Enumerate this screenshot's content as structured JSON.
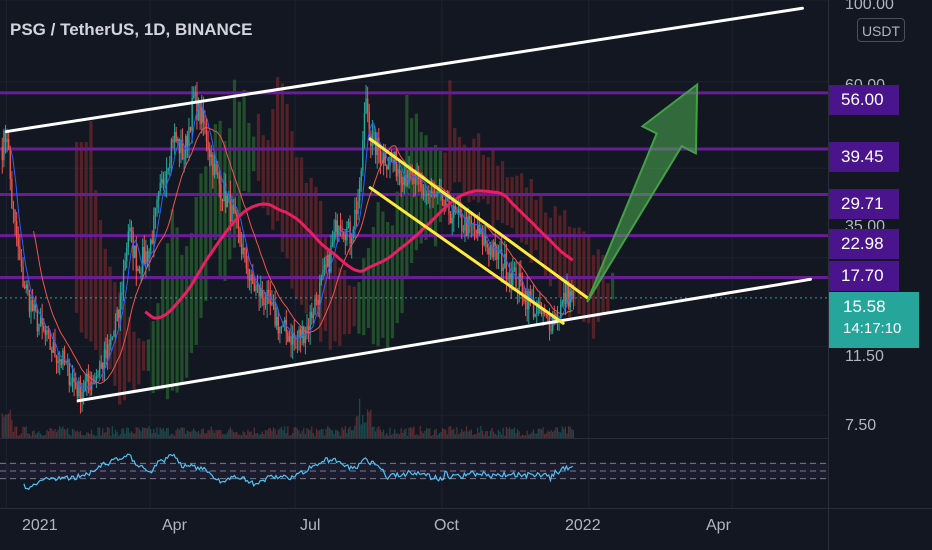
{
  "header": {
    "title": "PSG / TetherUS, 1D, BINANCE",
    "currency": "USDT"
  },
  "price_axis_labels": [
    "100.00",
    "60.00",
    "35.00",
    "11.50",
    "7.50"
  ],
  "time_axis_labels": [
    "2021",
    "Apr",
    "Jul",
    "Oct",
    "2022",
    "Apr"
  ],
  "price_levels": [
    "56.00",
    "39.45",
    "29.71",
    "22.98",
    "17.70"
  ],
  "current_price": {
    "price": "15.58",
    "countdown": "14:17:10"
  },
  "colors": {
    "background": "#131722",
    "level_line": "#6a1b9a",
    "level_label": "#4a148c",
    "channel": "#ffffff",
    "wedge": "#ffeb3b",
    "arrow": "#4caf50",
    "candle_up": "#26a69a",
    "candle_down": "#ef5350",
    "current_price": "#26a69a",
    "cloud_bear": "#8b2a2a",
    "cloud_bull": "#2e7d32",
    "rsi_line": "#4fc3f7"
  },
  "chart_data": {
    "type": "candlestick",
    "symbol": "PSG / TetherUS",
    "interval": "1D",
    "exchange": "BINANCE",
    "y_scale": "log",
    "ylim": [
      6.5,
      100
    ],
    "x_range": [
      "2020-12-28",
      "2022-05-31"
    ],
    "close_path": [
      {
        "date": "2020-12-29",
        "close": 40
      },
      {
        "date": "2021-01-01",
        "close": 44
      },
      {
        "date": "2021-01-04",
        "close": 28
      },
      {
        "date": "2021-01-10",
        "close": 18
      },
      {
        "date": "2021-01-18",
        "close": 14
      },
      {
        "date": "2021-01-28",
        "close": 11.5
      },
      {
        "date": "2021-02-05",
        "close": 10.5
      },
      {
        "date": "2021-02-15",
        "close": 8.7
      },
      {
        "date": "2021-02-25",
        "close": 9.5
      },
      {
        "date": "2021-03-05",
        "close": 11
      },
      {
        "date": "2021-03-12",
        "close": 14
      },
      {
        "date": "2021-03-18",
        "close": 24
      },
      {
        "date": "2021-03-24",
        "close": 19
      },
      {
        "date": "2021-03-31",
        "close": 21
      },
      {
        "date": "2021-04-07",
        "close": 30
      },
      {
        "date": "2021-04-15",
        "close": 43
      },
      {
        "date": "2021-04-22",
        "close": 38
      },
      {
        "date": "2021-04-28",
        "close": 54
      },
      {
        "date": "2021-05-05",
        "close": 45
      },
      {
        "date": "2021-05-12",
        "close": 33
      },
      {
        "date": "2021-05-20",
        "close": 28
      },
      {
        "date": "2021-05-26",
        "close": 23
      },
      {
        "date": "2021-06-03",
        "close": 17
      },
      {
        "date": "2021-06-12",
        "close": 15.5
      },
      {
        "date": "2021-06-21",
        "close": 13
      },
      {
        "date": "2021-07-01",
        "close": 12
      },
      {
        "date": "2021-07-08",
        "close": 13
      },
      {
        "date": "2021-07-15",
        "close": 16
      },
      {
        "date": "2021-07-21",
        "close": 19
      },
      {
        "date": "2021-07-28",
        "close": 26
      },
      {
        "date": "2021-08-04",
        "close": 23
      },
      {
        "date": "2021-08-10",
        "close": 30
      },
      {
        "date": "2021-08-14",
        "close": 55
      },
      {
        "date": "2021-08-17",
        "close": 42
      },
      {
        "date": "2021-08-24",
        "close": 38
      },
      {
        "date": "2021-09-01",
        "close": 36
      },
      {
        "date": "2021-09-10",
        "close": 33
      },
      {
        "date": "2021-09-20",
        "close": 30
      },
      {
        "date": "2021-10-01",
        "close": 28
      },
      {
        "date": "2021-10-12",
        "close": 25
      },
      {
        "date": "2021-10-20",
        "close": 24
      },
      {
        "date": "2021-11-01",
        "close": 21
      },
      {
        "date": "2021-11-10",
        "close": 19
      },
      {
        "date": "2021-11-20",
        "close": 16.5
      },
      {
        "date": "2021-11-28",
        "close": 14.5
      },
      {
        "date": "2021-12-05",
        "close": 13.5
      },
      {
        "date": "2021-12-12",
        "close": 14
      },
      {
        "date": "2021-12-18",
        "close": 16
      },
      {
        "date": "2021-12-22",
        "close": 15.58
      }
    ],
    "horizontal_levels": [
      56.0,
      39.45,
      29.71,
      22.98,
      17.7
    ],
    "current_price": 15.58,
    "ascending_channel": {
      "upper": [
        {
          "date": "2021-01-01",
          "price": 44
        },
        {
          "date": "2022-05-15",
          "price": 95
        }
      ],
      "lower": [
        {
          "date": "2021-02-15",
          "price": 8.2
        },
        {
          "date": "2022-05-20",
          "price": 17.5
        }
      ]
    },
    "descending_wedge": [
      [
        {
          "date": "2021-08-17",
          "price": 42
        },
        {
          "date": "2022-01-01",
          "price": 15.5
        }
      ],
      [
        {
          "date": "2021-08-17",
          "price": 31
        },
        {
          "date": "2021-12-16",
          "price": 13.3
        }
      ]
    ],
    "projection_arrow": {
      "from": {
        "date": "2021-12-31",
        "price": 15.2
      },
      "to": {
        "date": "2022-03-10",
        "price": 59
      }
    },
    "rsi": {
      "ylim": [
        0,
        100
      ],
      "bands": [
        30,
        50,
        70
      ]
    }
  }
}
